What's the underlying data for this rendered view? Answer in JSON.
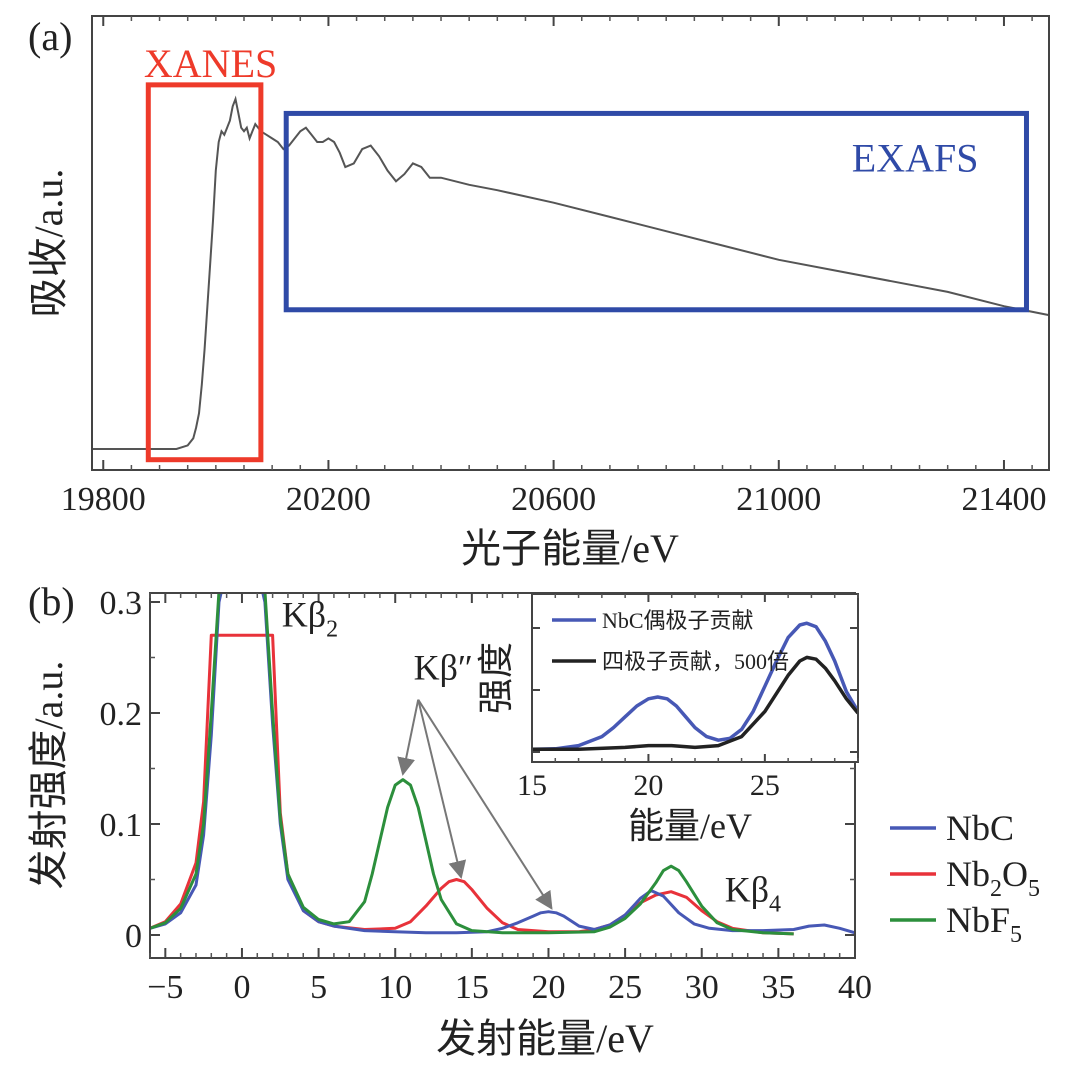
{
  "chart_data": [
    {
      "panel": "(a)",
      "type": "line",
      "xlabel": "光子能量/eV",
      "ylabel": "吸收/a.u.",
      "xlim": [
        19780,
        21480
      ],
      "xticks": [
        19800,
        20200,
        20600,
        21000,
        21400
      ],
      "xtick_labels": [
        "19800",
        "20200",
        "20600",
        "21000",
        "21400"
      ],
      "yticks_shown": false,
      "series": [
        {
          "name": "absorption",
          "color": "#555555",
          "x": [
            19780,
            19830,
            19880,
            19930,
            19950,
            19960,
            19965,
            19970,
            19975,
            19980,
            19985,
            19990,
            19995,
            20000,
            20005,
            20010,
            20015,
            20020,
            20025,
            20030,
            20035,
            20040,
            20045,
            20050,
            20055,
            20060,
            20065,
            20070,
            20080,
            20090,
            20100,
            20110,
            20120,
            20130,
            20140,
            20150,
            20160,
            20170,
            20180,
            20190,
            20200,
            20210,
            20220,
            20230,
            20245,
            20260,
            20275,
            20290,
            20305,
            20320,
            20335,
            20350,
            20365,
            20380,
            20400,
            20450,
            20500,
            20600,
            20700,
            20800,
            20900,
            21000,
            21100,
            21200,
            21300,
            21400,
            21480
          ],
          "y": [
            0.0,
            0.0,
            0.0,
            0.0,
            0.01,
            0.03,
            0.06,
            0.1,
            0.18,
            0.28,
            0.4,
            0.52,
            0.64,
            0.78,
            0.86,
            0.89,
            0.88,
            0.9,
            0.92,
            0.96,
            0.98,
            0.94,
            0.9,
            0.89,
            0.9,
            0.87,
            0.89,
            0.91,
            0.89,
            0.88,
            0.87,
            0.86,
            0.84,
            0.85,
            0.87,
            0.89,
            0.9,
            0.88,
            0.86,
            0.86,
            0.87,
            0.86,
            0.83,
            0.79,
            0.8,
            0.84,
            0.85,
            0.82,
            0.78,
            0.75,
            0.77,
            0.8,
            0.79,
            0.76,
            0.76,
            0.74,
            0.725,
            0.69,
            0.65,
            0.61,
            0.57,
            0.53,
            0.5,
            0.47,
            0.44,
            0.4,
            0.375
          ]
        }
      ],
      "annotations": [
        {
          "label": "XANES",
          "color": "#ee3a2a",
          "x_range": [
            19880,
            20080
          ],
          "y_range": [
            -0.03,
            1.02
          ]
        },
        {
          "label": "EXAFS",
          "color": "#2f4aa7",
          "x_range": [
            20125,
            21440
          ],
          "y_range": [
            0.39,
            0.94
          ]
        }
      ]
    },
    {
      "panel": "(b)",
      "type": "line",
      "xlabel": "发射能量/eV",
      "ylabel": "发射强度/a.u.",
      "xlim": [
        -6,
        40
      ],
      "ylim": [
        -0.01,
        0.32
      ],
      "xticks": [
        -5,
        0,
        5,
        10,
        15,
        20,
        25,
        30,
        35,
        40
      ],
      "xtick_labels": [
        "−5",
        "0",
        "5",
        "10",
        "15",
        "20",
        "25",
        "30",
        "35",
        "40"
      ],
      "yticks": [
        0,
        0.1,
        0.2,
        0.3
      ],
      "ytick_labels": [
        "0",
        "0.1",
        "0.2",
        "0.3"
      ],
      "series": [
        {
          "name": "NbC",
          "color": "#4758b5",
          "x": [
            -6,
            -5,
            -4,
            -3,
            -2.5,
            -2,
            -1.5,
            -1,
            1,
            1.5,
            2,
            2.5,
            3,
            4,
            5,
            6,
            8,
            10,
            12,
            14,
            16,
            17,
            18,
            19,
            19.5,
            20,
            20.5,
            21,
            22,
            23,
            24,
            25,
            26,
            26.7,
            27.5,
            28.5,
            29.5,
            30.5,
            32,
            34,
            36,
            37,
            38,
            39,
            40
          ],
          "y": [
            0.006,
            0.01,
            0.02,
            0.045,
            0.09,
            0.18,
            0.3,
            0.33,
            0.33,
            0.3,
            0.19,
            0.1,
            0.05,
            0.022,
            0.012,
            0.008,
            0.004,
            0.003,
            0.002,
            0.002,
            0.003,
            0.006,
            0.011,
            0.017,
            0.02,
            0.021,
            0.02,
            0.017,
            0.008,
            0.005,
            0.009,
            0.018,
            0.033,
            0.04,
            0.035,
            0.02,
            0.01,
            0.006,
            0.004,
            0.004,
            0.005,
            0.008,
            0.009,
            0.006,
            0.002
          ]
        },
        {
          "name": "Nb2O5",
          "color": "#e8323a",
          "x": [
            -6,
            -5,
            -4,
            -3,
            -2.5,
            -2,
            2,
            2.5,
            3,
            4,
            5,
            6,
            8,
            10,
            11,
            12,
            13,
            13.5,
            14,
            14.5,
            15,
            16,
            17,
            18,
            20,
            22,
            23,
            24,
            25,
            26,
            27,
            28,
            29,
            30,
            31,
            32,
            34,
            36
          ],
          "y": [
            0.006,
            0.012,
            0.028,
            0.065,
            0.12,
            0.27,
            0.27,
            0.11,
            0.055,
            0.022,
            0.012,
            0.008,
            0.005,
            0.006,
            0.012,
            0.026,
            0.042,
            0.048,
            0.05,
            0.048,
            0.041,
            0.024,
            0.011,
            0.005,
            0.003,
            0.003,
            0.005,
            0.009,
            0.018,
            0.029,
            0.036,
            0.039,
            0.034,
            0.022,
            0.012,
            0.006,
            0.002,
            0.001
          ]
        },
        {
          "name": "NbF5",
          "color": "#2c8f3c",
          "x": [
            -6,
            -5,
            -4,
            -3,
            -2.5,
            -2,
            -1.5,
            -1,
            1,
            1.5,
            2,
            2.5,
            3,
            4,
            5,
            6,
            7,
            8,
            8.5,
            9,
            9.5,
            10,
            10.5,
            11,
            11.5,
            12,
            12.5,
            13,
            14,
            15,
            17,
            20,
            23,
            24,
            25,
            26,
            27,
            27.5,
            28,
            28.5,
            29,
            30,
            31,
            32,
            34,
            36
          ],
          "y": [
            0.006,
            0.011,
            0.024,
            0.055,
            0.1,
            0.2,
            0.31,
            0.33,
            0.33,
            0.31,
            0.2,
            0.105,
            0.055,
            0.025,
            0.014,
            0.01,
            0.012,
            0.03,
            0.055,
            0.085,
            0.115,
            0.135,
            0.14,
            0.135,
            0.115,
            0.085,
            0.055,
            0.032,
            0.01,
            0.004,
            0.002,
            0.002,
            0.003,
            0.007,
            0.015,
            0.028,
            0.047,
            0.058,
            0.062,
            0.058,
            0.048,
            0.026,
            0.011,
            0.005,
            0.002,
            0.001
          ]
        }
      ],
      "annotations": [
        {
          "label": "Kβ2",
          "text": "Kβ",
          "sub": "2",
          "x": 2.6,
          "y": 0.278
        },
        {
          "label": "Kβ″",
          "text": "Kβ″",
          "x": 11.2,
          "y": 0.23
        },
        {
          "label": "Kβ4",
          "text": "Kβ",
          "sub": "4",
          "x": 31.5,
          "y": 0.03
        }
      ],
      "arrows": [
        {
          "from": [
            11.5,
            0.212
          ],
          "to": [
            10.5,
            0.145
          ]
        },
        {
          "from": [
            11.5,
            0.212
          ],
          "to": [
            14.3,
            0.052
          ]
        },
        {
          "from": [
            11.5,
            0.212
          ],
          "to": [
            20.2,
            0.024
          ]
        }
      ],
      "legend": {
        "position": "outside-right",
        "entries": [
          {
            "name": "NbC",
            "text": "NbC",
            "color": "#4758b5"
          },
          {
            "name": "Nb2O5",
            "parts": [
              "Nb",
              "2",
              "O",
              "5"
            ],
            "color": "#e8323a"
          },
          {
            "name": "NbF5",
            "parts": [
              "NbF",
              "5"
            ],
            "color": "#2c8f3c"
          }
        ]
      },
      "inset": {
        "type": "line",
        "xlabel": "能量/eV",
        "ylabel": "强度",
        "xlim": [
          15,
          29
        ],
        "xticks": [
          15,
          20,
          25
        ],
        "xtick_labels": [
          "15",
          "20",
          "25"
        ],
        "series": [
          {
            "name": "NbC偶极子贡献",
            "color": "#4758b5",
            "x": [
              15,
              16,
              17,
              18,
              18.5,
              19,
              19.5,
              20,
              20.4,
              20.8,
              21.2,
              21.6,
              22,
              22.5,
              23,
              23.5,
              24,
              24.5,
              25,
              25.5,
              26,
              26.5,
              26.8,
              27.2,
              27.6,
              28,
              28.5,
              29
            ],
            "y": [
              0.01,
              0.012,
              0.03,
              0.08,
              0.13,
              0.19,
              0.25,
              0.29,
              0.3,
              0.29,
              0.25,
              0.19,
              0.13,
              0.08,
              0.06,
              0.07,
              0.12,
              0.22,
              0.36,
              0.5,
              0.63,
              0.7,
              0.71,
              0.69,
              0.61,
              0.5,
              0.33,
              0.22
            ]
          },
          {
            "name": "四极子贡献，500倍",
            "color": "#222222",
            "x": [
              15,
              17,
              19,
              20,
              21,
              22,
              23,
              24,
              25,
              25.5,
              26,
              26.5,
              26.8,
              27.2,
              27.6,
              28,
              28.5,
              29
            ],
            "y": [
              0.01,
              0.01,
              0.02,
              0.03,
              0.03,
              0.02,
              0.03,
              0.08,
              0.22,
              0.32,
              0.42,
              0.5,
              0.52,
              0.51,
              0.46,
              0.39,
              0.29,
              0.21
            ]
          }
        ]
      }
    }
  ]
}
